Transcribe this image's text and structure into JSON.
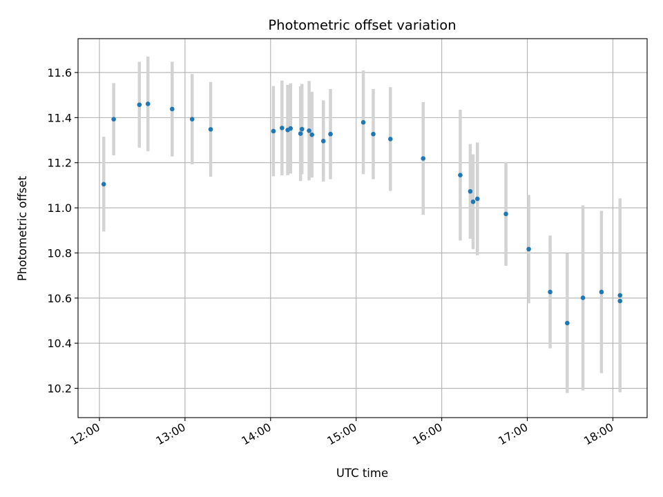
{
  "chart_data": {
    "type": "scatter",
    "title": "Photometric offset variation",
    "xlabel": "UTC time",
    "ylabel": "Photometric offset",
    "x_unit": "UTC hour of day",
    "xlim": [
      "11:45",
      "18:24"
    ],
    "ylim": [
      10.07,
      11.75
    ],
    "xticks": [
      "12:00",
      "13:00",
      "14:00",
      "15:00",
      "16:00",
      "17:00",
      "18:00"
    ],
    "yticks": [
      "10.2",
      "10.4",
      "10.6",
      "10.8",
      "11.0",
      "11.2",
      "11.4",
      "11.6"
    ],
    "grid": true,
    "legend": "none",
    "colors": {
      "point": "#1f77b4",
      "errorbar": "#d3d3d3",
      "grid": "#b0b0b0"
    },
    "points": [
      {
        "x": "12:03",
        "y": 11.105,
        "err": 0.21
      },
      {
        "x": "12:10",
        "y": 11.393,
        "err": 0.16
      },
      {
        "x": "12:28",
        "y": 11.457,
        "err": 0.19
      },
      {
        "x": "12:34",
        "y": 11.461,
        "err": 0.21
      },
      {
        "x": "12:51",
        "y": 11.438,
        "err": 0.21
      },
      {
        "x": "13:05",
        "y": 11.393,
        "err": 0.2
      },
      {
        "x": "13:18",
        "y": 11.348,
        "err": 0.21
      },
      {
        "x": "14:02",
        "y": 11.34,
        "err": 0.2
      },
      {
        "x": "14:08",
        "y": 11.354,
        "err": 0.21
      },
      {
        "x": "14:12",
        "y": 11.345,
        "err": 0.2
      },
      {
        "x": "14:14",
        "y": 11.352,
        "err": 0.2
      },
      {
        "x": "14:21",
        "y": 11.329,
        "err": 0.21
      },
      {
        "x": "14:22",
        "y": 11.349,
        "err": 0.2
      },
      {
        "x": "14:27",
        "y": 11.342,
        "err": 0.22
      },
      {
        "x": "14:29",
        "y": 11.324,
        "err": 0.19
      },
      {
        "x": "14:37",
        "y": 11.296,
        "err": 0.18
      },
      {
        "x": "14:42",
        "y": 11.327,
        "err": 0.2
      },
      {
        "x": "15:05",
        "y": 11.379,
        "err": 0.23
      },
      {
        "x": "15:12",
        "y": 11.327,
        "err": 0.2
      },
      {
        "x": "15:24",
        "y": 11.305,
        "err": 0.23
      },
      {
        "x": "15:47",
        "y": 11.219,
        "err": 0.25
      },
      {
        "x": "16:13",
        "y": 11.145,
        "err": 0.29
      },
      {
        "x": "16:20",
        "y": 11.073,
        "err": 0.21
      },
      {
        "x": "16:22",
        "y": 11.027,
        "err": 0.21
      },
      {
        "x": "16:25",
        "y": 11.04,
        "err": 0.25
      },
      {
        "x": "16:45",
        "y": 10.973,
        "err": 0.23
      },
      {
        "x": "17:01",
        "y": 10.817,
        "err": 0.24
      },
      {
        "x": "17:16",
        "y": 10.627,
        "err": 0.25
      },
      {
        "x": "17:28",
        "y": 10.489,
        "err": 0.31
      },
      {
        "x": "17:39",
        "y": 10.601,
        "err": 0.41
      },
      {
        "x": "17:52",
        "y": 10.627,
        "err": 0.36
      },
      {
        "x": "18:05",
        "y": 10.612,
        "err": 0.43
      },
      {
        "x": "18:05",
        "y": 10.587,
        "err": 0.4
      }
    ]
  }
}
